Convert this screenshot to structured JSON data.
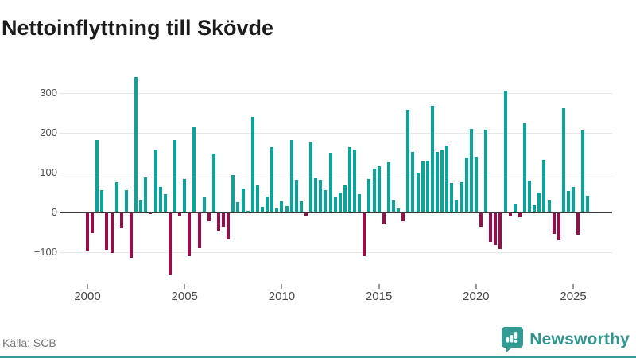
{
  "title": "Nettoinflyttning till Skövde",
  "source": "Källa: SCB",
  "brand": {
    "name": "Newsworthy"
  },
  "colors": {
    "positive": "#0aa49b",
    "negative": "#9b0c4b",
    "accent": "#349b94",
    "gridline": "#e7e7e7",
    "zero_axis": "#3a3a3a"
  },
  "chart_data": {
    "type": "bar",
    "title": "Nettoinflyttning till Skövde",
    "xlabel": "",
    "ylabel": "",
    "frequency": "quarterly",
    "x_start": "2000 Q1",
    "x_end": "2025 Q4",
    "categories": [
      "2000Q1",
      "2000Q2",
      "2000Q3",
      "2000Q4",
      "2001Q1",
      "2001Q2",
      "2001Q3",
      "2001Q4",
      "2002Q1",
      "2002Q2",
      "2002Q3",
      "2002Q4",
      "2003Q1",
      "2003Q2",
      "2003Q3",
      "2003Q4",
      "2004Q1",
      "2004Q2",
      "2004Q3",
      "2004Q4",
      "2005Q1",
      "2005Q2",
      "2005Q3",
      "2005Q4",
      "2006Q1",
      "2006Q2",
      "2006Q3",
      "2006Q4",
      "2007Q1",
      "2007Q2",
      "2007Q3",
      "2007Q4",
      "2008Q1",
      "2008Q2",
      "2008Q3",
      "2008Q4",
      "2009Q1",
      "2009Q2",
      "2009Q3",
      "2009Q4",
      "2010Q1",
      "2010Q2",
      "2010Q3",
      "2010Q4",
      "2011Q1",
      "2011Q2",
      "2011Q3",
      "2011Q4",
      "2012Q1",
      "2012Q2",
      "2012Q3",
      "2012Q4",
      "2013Q1",
      "2013Q2",
      "2013Q3",
      "2013Q4",
      "2014Q1",
      "2014Q2",
      "2014Q3",
      "2014Q4",
      "2015Q1",
      "2015Q2",
      "2015Q3",
      "2015Q4",
      "2016Q1",
      "2016Q2",
      "2016Q3",
      "2016Q4",
      "2017Q1",
      "2017Q2",
      "2017Q3",
      "2017Q4",
      "2018Q1",
      "2018Q2",
      "2018Q3",
      "2018Q4",
      "2019Q1",
      "2019Q2",
      "2019Q3",
      "2019Q4",
      "2020Q1",
      "2020Q2",
      "2020Q3",
      "2020Q4",
      "2021Q1",
      "2021Q2",
      "2021Q3",
      "2021Q4",
      "2022Q1",
      "2022Q2",
      "2022Q3",
      "2022Q4",
      "2023Q1",
      "2023Q2",
      "2023Q3",
      "2023Q4",
      "2024Q1",
      "2024Q2",
      "2024Q3",
      "2024Q4",
      "2025Q1",
      "2025Q2",
      "2025Q3",
      "2025Q4"
    ],
    "values": [
      -97,
      -53,
      182,
      55,
      -95,
      -103,
      75,
      -40,
      55,
      -115,
      340,
      30,
      88,
      -5,
      157,
      63,
      45,
      -158,
      181,
      -10,
      83,
      -111,
      213,
      -90,
      38,
      -23,
      148,
      -47,
      -37,
      -69,
      93,
      25,
      60,
      3,
      240,
      67,
      14,
      39,
      163,
      9,
      27,
      15,
      181,
      81,
      27,
      -9,
      175,
      85,
      81,
      55,
      149,
      37,
      49,
      67,
      163,
      157,
      45,
      -111,
      83,
      109,
      115,
      -30,
      125,
      29,
      9,
      -22,
      257,
      151,
      100,
      127,
      130,
      268,
      151,
      155,
      167,
      73,
      29,
      75,
      138,
      209,
      139,
      -37,
      208,
      -75,
      -82,
      -93,
      305,
      -10,
      22,
      -12,
      223,
      80,
      18,
      49,
      132,
      29,
      -55,
      -70,
      262,
      53,
      63,
      -57,
      205,
      42
    ],
    "yticks": [
      300,
      200,
      100,
      0,
      -100
    ],
    "xticks": [
      2000,
      2005,
      2010,
      2015,
      2020,
      2025
    ],
    "ylim": [
      -177,
      363
    ],
    "grid": true,
    "legend": false,
    "positive_color": "#0aa49b",
    "negative_color": "#9b0c4b"
  }
}
